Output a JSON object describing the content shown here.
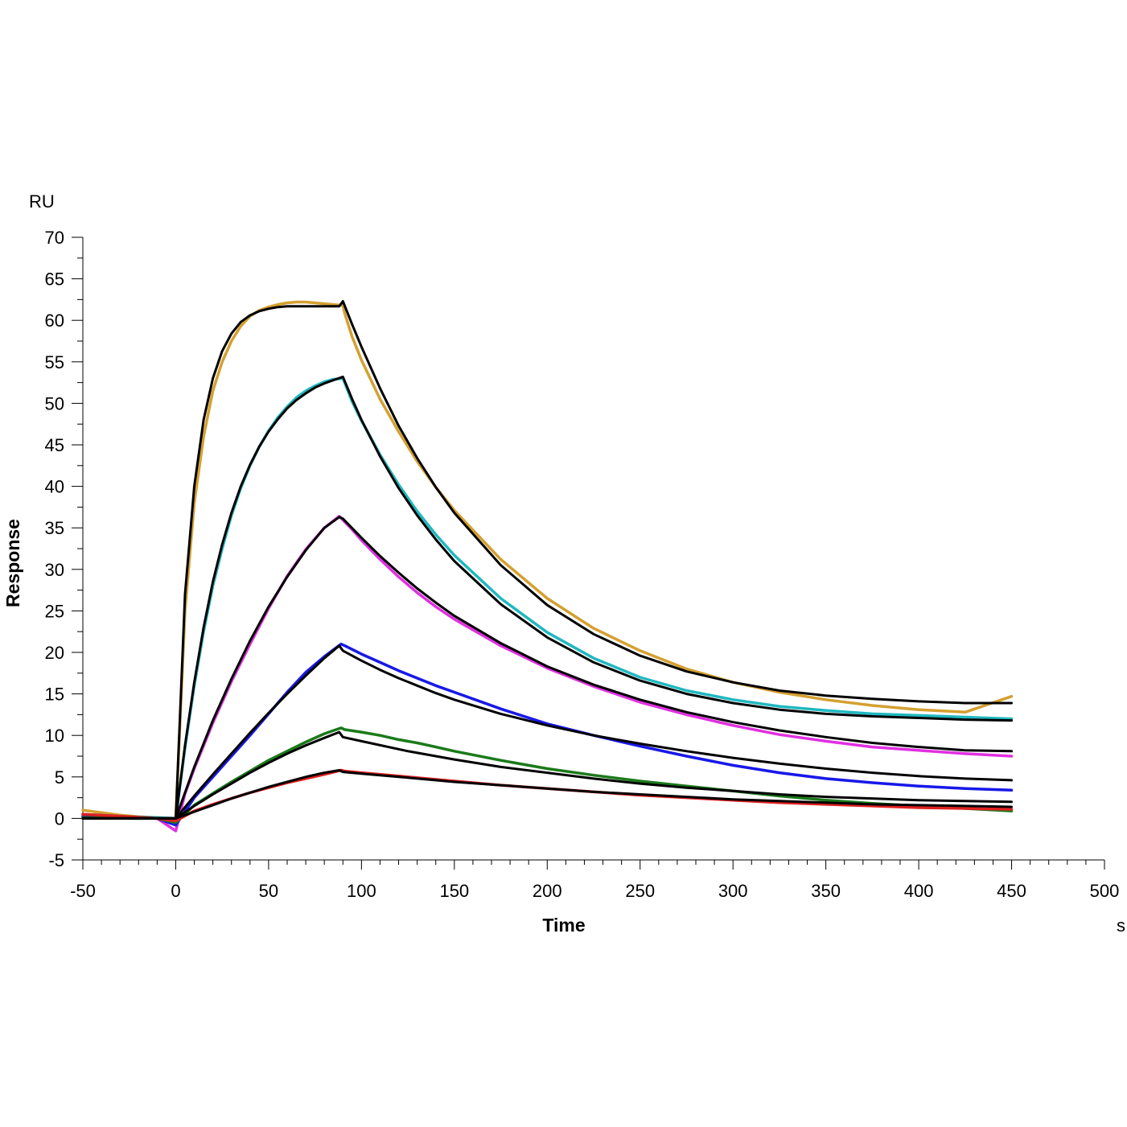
{
  "chart_data": {
    "type": "line",
    "title": "",
    "xlabel": "Time",
    "ylabel": "Response",
    "x_unit": "s",
    "y_unit": "RU",
    "xlim": [
      -50,
      500
    ],
    "ylim": [
      -5,
      70
    ],
    "x_ticks": [
      -50,
      0,
      50,
      100,
      150,
      200,
      250,
      300,
      350,
      400,
      450,
      500
    ],
    "y_ticks": [
      -5,
      0,
      5,
      10,
      15,
      20,
      25,
      30,
      35,
      40,
      45,
      50,
      55,
      60,
      65,
      70
    ],
    "grid": false,
    "legend": "none",
    "series": [
      {
        "color": "#D4A030",
        "kind": "measured",
        "x": [
          -50,
          -40,
          -30,
          -20,
          -10,
          0,
          5,
          10,
          15,
          20,
          25,
          30,
          35,
          40,
          45,
          50,
          55,
          60,
          65,
          70,
          75,
          80,
          85,
          90,
          91,
          95,
          100,
          110,
          120,
          130,
          140,
          150,
          175,
          200,
          225,
          250,
          275,
          300,
          325,
          350,
          375,
          400,
          425,
          450
        ],
        "y": [
          1.0,
          0.7,
          0.4,
          0.2,
          0.1,
          0.0,
          25.0,
          38.0,
          46.0,
          51.5,
          55.0,
          57.5,
          59.3,
          60.5,
          61.2,
          61.6,
          61.9,
          62.1,
          62.2,
          62.2,
          62.1,
          62.0,
          61.9,
          61.8,
          60.8,
          58.0,
          55.2,
          50.5,
          46.6,
          43.0,
          39.9,
          37.1,
          31.2,
          26.5,
          22.9,
          20.2,
          18.0,
          16.4,
          15.2,
          14.3,
          13.6,
          13.1,
          12.8,
          14.7
        ]
      },
      {
        "color": "#20B8C0",
        "kind": "measured",
        "x": [
          -50,
          -25,
          -10,
          0,
          5,
          10,
          15,
          20,
          25,
          30,
          35,
          40,
          45,
          50,
          55,
          60,
          65,
          70,
          75,
          80,
          85,
          90,
          95,
          100,
          110,
          120,
          130,
          140,
          150,
          175,
          200,
          225,
          250,
          275,
          300,
          325,
          350,
          375,
          400,
          425,
          450
        ],
        "y": [
          0.5,
          0.2,
          0.1,
          0.0,
          8.5,
          16.0,
          22.5,
          28.0,
          32.5,
          36.5,
          39.8,
          42.5,
          44.8,
          46.7,
          48.3,
          49.6,
          50.7,
          51.5,
          52.1,
          52.6,
          52.9,
          53.0,
          50.2,
          47.9,
          43.8,
          40.2,
          37.0,
          34.2,
          31.7,
          26.5,
          22.4,
          19.3,
          17.0,
          15.4,
          14.3,
          13.5,
          13.0,
          12.6,
          12.4,
          12.2,
          12.0
        ]
      },
      {
        "color": "#E030E0",
        "kind": "measured",
        "x": [
          -50,
          -25,
          -10,
          0,
          5,
          10,
          20,
          30,
          40,
          50,
          60,
          70,
          80,
          88,
          95,
          100,
          110,
          120,
          130,
          140,
          150,
          175,
          200,
          225,
          250,
          275,
          300,
          325,
          350,
          375,
          400,
          425,
          450
        ],
        "y": [
          0.3,
          0.1,
          0.0,
          -1.5,
          3.0,
          6.0,
          11.5,
          16.5,
          21.0,
          25.3,
          29.2,
          32.4,
          35.0,
          36.4,
          34.8,
          33.5,
          31.2,
          29.1,
          27.2,
          25.5,
          24.0,
          20.8,
          18.1,
          15.9,
          14.0,
          12.5,
          11.2,
          10.1,
          9.3,
          8.6,
          8.2,
          7.8,
          7.5
        ]
      },
      {
        "color": "#1818E8",
        "kind": "measured",
        "x": [
          -50,
          -25,
          -10,
          0,
          10,
          20,
          30,
          40,
          50,
          60,
          70,
          80,
          89,
          91,
          100,
          110,
          120,
          130,
          140,
          150,
          175,
          200,
          225,
          250,
          275,
          300,
          325,
          350,
          375,
          400,
          425,
          450
        ],
        "y": [
          0.2,
          0.1,
          0.0,
          -0.8,
          2.5,
          5.0,
          7.5,
          10.0,
          12.6,
          15.2,
          17.6,
          19.5,
          21.0,
          20.8,
          19.8,
          18.8,
          17.8,
          16.9,
          16.0,
          15.2,
          13.2,
          11.4,
          10.0,
          8.7,
          7.5,
          6.4,
          5.5,
          4.8,
          4.3,
          3.9,
          3.6,
          3.4
        ]
      },
      {
        "color": "#1A7A1A",
        "kind": "measured",
        "x": [
          -50,
          -25,
          -10,
          0,
          10,
          20,
          30,
          40,
          50,
          60,
          70,
          80,
          89,
          91,
          100,
          110,
          120,
          130,
          140,
          150,
          175,
          200,
          225,
          250,
          275,
          300,
          325,
          350,
          375,
          400,
          425,
          450
        ],
        "y": [
          0.1,
          0.0,
          0.0,
          -0.5,
          1.6,
          3.0,
          4.4,
          5.7,
          7.0,
          8.1,
          9.2,
          10.2,
          10.9,
          10.7,
          10.4,
          10.0,
          9.5,
          9.1,
          8.6,
          8.1,
          7.0,
          6.0,
          5.2,
          4.5,
          3.9,
          3.3,
          2.7,
          2.2,
          1.8,
          1.5,
          1.2,
          0.9
        ]
      },
      {
        "color": "#E02020",
        "kind": "measured",
        "x": [
          -50,
          -25,
          -10,
          0,
          10,
          20,
          30,
          40,
          50,
          60,
          70,
          80,
          89,
          91,
          100,
          125,
          150,
          175,
          200,
          225,
          250,
          275,
          300,
          325,
          350,
          375,
          400,
          425,
          450
        ],
        "y": [
          0.5,
          0.2,
          0.0,
          -0.3,
          0.9,
          1.7,
          2.4,
          3.1,
          3.7,
          4.3,
          4.8,
          5.3,
          5.8,
          5.7,
          5.5,
          5.0,
          4.5,
          4.0,
          3.6,
          3.2,
          2.8,
          2.5,
          2.2,
          1.9,
          1.7,
          1.5,
          1.3,
          1.2,
          1.1
        ]
      },
      {
        "color": "#000000",
        "kind": "fit",
        "x": [
          -50,
          -10,
          0,
          5,
          10,
          15,
          20,
          25,
          30,
          35,
          40,
          45,
          50,
          55,
          60,
          65,
          70,
          75,
          80,
          85,
          88,
          90,
          95,
          100,
          110,
          120,
          130,
          140,
          150,
          175,
          200,
          225,
          250,
          275,
          300,
          325,
          350,
          375,
          400,
          425,
          450
        ],
        "y": [
          0.0,
          0.0,
          0.0,
          27.0,
          40.0,
          48.0,
          53.0,
          56.3,
          58.4,
          59.8,
          60.6,
          61.1,
          61.4,
          61.6,
          61.7,
          61.7,
          61.7,
          61.7,
          61.7,
          61.7,
          61.7,
          62.3,
          59.5,
          56.8,
          51.8,
          47.3,
          43.4,
          39.9,
          36.8,
          30.5,
          25.7,
          22.2,
          19.6,
          17.7,
          16.4,
          15.4,
          14.8,
          14.4,
          14.1,
          13.9,
          13.9
        ]
      },
      {
        "color": "#000000",
        "kind": "fit",
        "x": [
          -50,
          -10,
          0,
          5,
          10,
          15,
          20,
          25,
          30,
          35,
          40,
          45,
          50,
          55,
          60,
          65,
          70,
          75,
          80,
          85,
          90,
          95,
          100,
          110,
          120,
          130,
          140,
          150,
          175,
          200,
          225,
          250,
          275,
          300,
          325,
          350,
          375,
          400,
          425,
          450
        ],
        "y": [
          0.0,
          0.0,
          0.0,
          8.8,
          16.4,
          23.0,
          28.5,
          33.0,
          36.8,
          40.0,
          42.6,
          44.8,
          46.6,
          48.1,
          49.4,
          50.4,
          51.2,
          51.9,
          52.4,
          52.8,
          53.2,
          50.5,
          48.0,
          43.6,
          39.8,
          36.5,
          33.6,
          31.0,
          25.8,
          21.8,
          18.8,
          16.6,
          15.0,
          13.9,
          13.1,
          12.6,
          12.3,
          12.1,
          11.9,
          11.8
        ]
      },
      {
        "color": "#000000",
        "kind": "fit",
        "x": [
          -50,
          -10,
          0,
          10,
          20,
          30,
          40,
          50,
          60,
          70,
          80,
          88,
          90,
          100,
          110,
          120,
          130,
          140,
          150,
          175,
          200,
          225,
          250,
          275,
          300,
          325,
          350,
          375,
          400,
          425,
          450
        ],
        "y": [
          0.0,
          0.0,
          0.0,
          6.2,
          11.8,
          16.8,
          21.4,
          25.5,
          29.1,
          32.3,
          35.0,
          36.3,
          36.1,
          33.8,
          31.6,
          29.6,
          27.7,
          26.0,
          24.4,
          21.1,
          18.3,
          16.1,
          14.3,
          12.8,
          11.6,
          10.6,
          9.8,
          9.1,
          8.6,
          8.2,
          8.1
        ]
      },
      {
        "color": "#000000",
        "kind": "fit",
        "x": [
          -50,
          -10,
          0,
          10,
          20,
          30,
          40,
          50,
          60,
          70,
          80,
          88,
          90,
          100,
          110,
          120,
          130,
          140,
          150,
          175,
          200,
          225,
          250,
          275,
          300,
          325,
          350,
          375,
          400,
          425,
          450
        ],
        "y": [
          0.0,
          0.0,
          0.0,
          2.7,
          5.3,
          7.8,
          10.3,
          12.7,
          15.0,
          17.2,
          19.3,
          20.8,
          20.2,
          19.0,
          17.9,
          16.9,
          16.0,
          15.1,
          14.3,
          12.6,
          11.2,
          10.0,
          9.0,
          8.1,
          7.3,
          6.6,
          6.0,
          5.5,
          5.1,
          4.8,
          4.6
        ]
      },
      {
        "color": "#000000",
        "kind": "fit",
        "x": [
          -50,
          -10,
          0,
          10,
          20,
          30,
          40,
          50,
          60,
          70,
          80,
          88,
          90,
          100,
          125,
          150,
          175,
          200,
          225,
          250,
          275,
          300,
          325,
          350,
          375,
          400,
          425,
          450
        ],
        "y": [
          0.0,
          0.0,
          0.0,
          1.5,
          2.9,
          4.2,
          5.5,
          6.7,
          7.8,
          8.8,
          9.7,
          10.4,
          9.8,
          9.3,
          8.1,
          7.1,
          6.2,
          5.5,
          4.8,
          4.2,
          3.7,
          3.3,
          2.9,
          2.6,
          2.4,
          2.2,
          2.1,
          2.0
        ]
      },
      {
        "color": "#000000",
        "kind": "fit",
        "x": [
          -50,
          -10,
          0,
          10,
          20,
          30,
          40,
          50,
          60,
          70,
          80,
          88,
          90,
          100,
          125,
          150,
          175,
          200,
          225,
          250,
          275,
          300,
          325,
          350,
          375,
          400,
          425,
          450
        ],
        "y": [
          0.0,
          0.0,
          0.0,
          0.8,
          1.6,
          2.4,
          3.1,
          3.8,
          4.4,
          5.0,
          5.5,
          5.8,
          5.6,
          5.4,
          4.9,
          4.4,
          4.0,
          3.6,
          3.2,
          2.9,
          2.6,
          2.3,
          2.1,
          1.9,
          1.7,
          1.6,
          1.5,
          1.4
        ]
      }
    ]
  }
}
